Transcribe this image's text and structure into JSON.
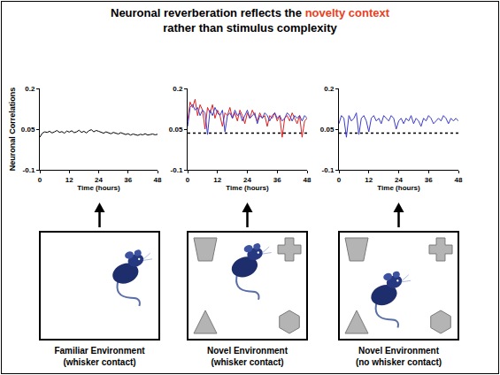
{
  "title": {
    "lines": [
      "Neuronal reverberation reflects the novelty context",
      "rather than stimulus complexity"
    ],
    "highlight": "novelty context",
    "highlight_color": "#e8401c"
  },
  "chart_data": [
    {
      "type": "line",
      "ylabel": "Neuronal Correlations",
      "xlabel": "Time (hours)",
      "grid": false,
      "xlim": [
        0,
        48
      ],
      "xticks": [
        0,
        12,
        24,
        36,
        48
      ],
      "ylim": [
        -0.1,
        0.2
      ],
      "yticks": [
        -0.1,
        0.05,
        0.2
      ],
      "x": [
        0,
        1,
        2,
        3,
        4,
        5,
        6,
        7,
        8,
        9,
        10,
        11,
        12,
        13,
        14,
        15,
        16,
        17,
        18,
        19,
        20,
        21,
        22,
        23,
        24,
        25,
        26,
        27,
        28,
        29,
        30,
        31,
        32,
        33,
        34,
        35,
        36,
        37,
        38,
        39,
        40,
        41,
        42,
        43,
        44,
        45,
        46,
        47,
        48
      ],
      "series": [
        {
          "color": "#000000",
          "values": [
            0.02,
            0.035,
            0.04,
            0.038,
            0.042,
            0.036,
            0.04,
            0.045,
            0.038,
            0.041,
            0.035,
            0.043,
            0.039,
            0.044,
            0.037,
            0.04,
            0.046,
            0.038,
            0.042,
            0.036,
            0.044,
            0.048,
            0.04,
            0.045,
            0.042,
            0.038,
            0.035,
            0.04,
            0.036,
            0.033,
            0.038,
            0.035,
            0.032,
            0.037,
            0.034,
            0.03,
            0.033,
            0.028,
            0.032,
            0.03,
            0.027,
            0.031,
            0.029,
            0.033,
            0.028,
            0.03,
            0.032,
            0.029,
            0.031
          ]
        }
      ]
    },
    {
      "type": "line",
      "xlabel": "Time (hours)",
      "grid": false,
      "xlim": [
        0,
        48
      ],
      "xticks": [
        0,
        12,
        24,
        36,
        48
      ],
      "ylim": [
        -0.1,
        0.2
      ],
      "yticks": [
        -0.1,
        0.05,
        0.2
      ],
      "baseline": {
        "value": 0.035,
        "line_style": "dotted",
        "color": "#000000"
      },
      "x": [
        0,
        1,
        2,
        3,
        4,
        5,
        6,
        7,
        8,
        9,
        10,
        11,
        12,
        13,
        14,
        15,
        16,
        17,
        18,
        19,
        20,
        21,
        22,
        23,
        24,
        25,
        26,
        27,
        28,
        29,
        30,
        31,
        32,
        33,
        34,
        35,
        36,
        37,
        38,
        39,
        40,
        41,
        42,
        43,
        44,
        45,
        46,
        47,
        48
      ],
      "series": [
        {
          "color": "#e0211f",
          "values": [
            0.08,
            0.15,
            0.13,
            0.16,
            0.1,
            0.14,
            0.12,
            0.05,
            0.13,
            0.11,
            0.14,
            0.09,
            0.12,
            0.1,
            0.06,
            0.11,
            0.1,
            0.13,
            0.09,
            0.11,
            0.08,
            0.12,
            0.1,
            0.07,
            0.11,
            0.09,
            0.12,
            0.1,
            0.08,
            0.11,
            0.09,
            0.1,
            0.06,
            0.1,
            0.09,
            0.11,
            0.08,
            0.1,
            0.02,
            0.09,
            0.1,
            0.08,
            0.11,
            0.09,
            0.07,
            0.1,
            0.02,
            0.08,
            0.09
          ]
        },
        {
          "color": "#3a3ad0",
          "values": [
            0.06,
            0.13,
            0.14,
            0.12,
            0.13,
            0.1,
            0.12,
            0.11,
            0.03,
            0.12,
            0.1,
            0.13,
            0.11,
            0.1,
            0.12,
            0.04,
            0.1,
            0.11,
            0.09,
            0.12,
            0.1,
            0.11,
            0.08,
            0.1,
            0.12,
            0.09,
            0.1,
            0.11,
            0.07,
            0.1,
            0.09,
            0.11,
            0.1,
            0.08,
            0.1,
            0.11,
            0.09,
            0.1,
            0.08,
            0.09,
            0.11,
            0.1,
            0.08,
            0.1,
            0.09,
            0.1,
            0.08,
            0.1,
            0.09
          ]
        }
      ]
    },
    {
      "type": "line",
      "xlabel": "Time (hours)",
      "grid": false,
      "xlim": [
        0,
        48
      ],
      "xticks": [
        0,
        12,
        24,
        36,
        48
      ],
      "ylim": [
        -0.1,
        0.2
      ],
      "yticks": [
        -0.1,
        0.05,
        0.2
      ],
      "baseline": {
        "value": 0.035,
        "line_style": "dotted",
        "color": "#000000"
      },
      "x": [
        0,
        1,
        2,
        3,
        4,
        5,
        6,
        7,
        8,
        9,
        10,
        11,
        12,
        13,
        14,
        15,
        16,
        17,
        18,
        19,
        20,
        21,
        22,
        23,
        24,
        25,
        26,
        27,
        28,
        29,
        30,
        31,
        32,
        33,
        34,
        35,
        36,
        37,
        38,
        39,
        40,
        41,
        42,
        43,
        44,
        45,
        46,
        47,
        48
      ],
      "series": [
        {
          "color": "#3a3ad0",
          "values": [
            0.07,
            0.1,
            0.09,
            0.02,
            0.1,
            0.08,
            0.09,
            0.11,
            0.03,
            0.09,
            0.1,
            0.08,
            0.04,
            0.09,
            0.1,
            0.08,
            0.09,
            0.07,
            0.1,
            0.09,
            0.08,
            0.1,
            0.09,
            0.05,
            0.08,
            0.09,
            0.07,
            0.09,
            0.08,
            0.1,
            0.07,
            0.09,
            0.08,
            0.06,
            0.09,
            0.08,
            0.1,
            0.09,
            0.07,
            0.08,
            0.09,
            0.08,
            0.1,
            0.09,
            0.07,
            0.09,
            0.08,
            0.09,
            0.08
          ]
        }
      ]
    }
  ],
  "panels": [
    {
      "caption": [
        "Familiar Environment",
        "(whisker contact)"
      ],
      "objects": 0
    },
    {
      "caption": [
        "Novel Environment",
        "(whisker contact)"
      ],
      "objects": 4
    },
    {
      "caption": [
        "Novel Environment",
        "(no whisker contact)"
      ],
      "objects": 4
    }
  ]
}
